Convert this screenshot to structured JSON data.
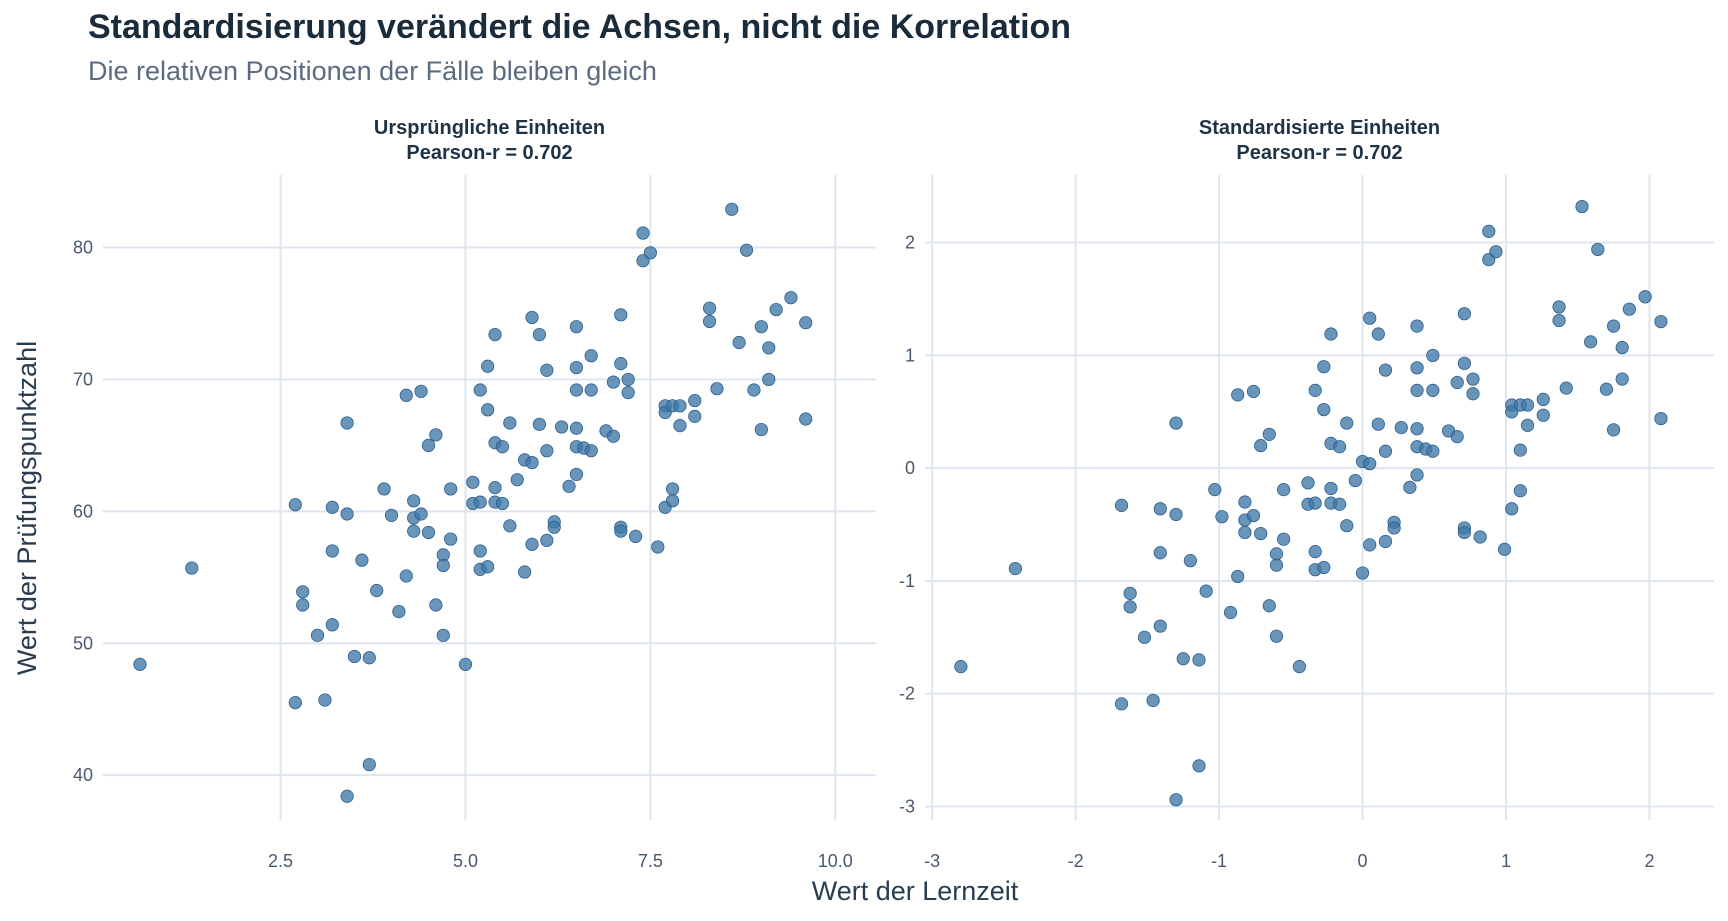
{
  "title": "Standardisierung verändert die Achsen, nicht die Korrelation",
  "subtitle": "Die relativen Positionen der Fälle bleiben gleich",
  "x_axis_title": "Wert der Lernzeit",
  "y_axis_title": "Wert der Prüfungspunktzahl",
  "chart_data": [
    {
      "type": "scatter",
      "panel_title": "Ursprüngliche Einheiten",
      "panel_stat": "Pearson-r = 0.702",
      "xlim": [
        0.1,
        10.55
      ],
      "ylim": [
        36.6,
        85.5
      ],
      "x_ticks": [
        2.5,
        5.0,
        7.5,
        10.0
      ],
      "x_tick_labels": [
        "2.5",
        "5.0",
        "7.5",
        "10.0"
      ],
      "y_ticks": [
        40,
        50,
        60,
        70,
        80
      ],
      "y_tick_labels": [
        "40",
        "50",
        "60",
        "70",
        "80"
      ],
      "grid": true,
      "points": [
        [
          0.6,
          48.4
        ],
        [
          1.3,
          55.7
        ],
        [
          2.7,
          60.5
        ],
        [
          2.7,
          45.5
        ],
        [
          2.8,
          53.9
        ],
        [
          2.8,
          52.9
        ],
        [
          3.0,
          50.6
        ],
        [
          3.1,
          45.7
        ],
        [
          3.2,
          60.3
        ],
        [
          3.2,
          57.0
        ],
        [
          3.2,
          51.4
        ],
        [
          3.4,
          66.7
        ],
        [
          3.4,
          59.8
        ],
        [
          3.4,
          38.4
        ],
        [
          3.5,
          49.0
        ],
        [
          3.6,
          56.3
        ],
        [
          3.7,
          48.9
        ],
        [
          3.7,
          40.8
        ],
        [
          3.8,
          54.0
        ],
        [
          3.9,
          61.7
        ],
        [
          4.0,
          59.7
        ],
        [
          4.1,
          52.4
        ],
        [
          4.2,
          68.8
        ],
        [
          4.2,
          55.1
        ],
        [
          4.3,
          60.8
        ],
        [
          4.3,
          59.5
        ],
        [
          4.3,
          58.5
        ],
        [
          4.4,
          69.1
        ],
        [
          4.4,
          59.8
        ],
        [
          4.5,
          65.0
        ],
        [
          4.5,
          58.4
        ],
        [
          4.6,
          65.8
        ],
        [
          4.6,
          52.9
        ],
        [
          4.7,
          56.7
        ],
        [
          4.7,
          55.9
        ],
        [
          4.7,
          50.6
        ],
        [
          4.8,
          61.7
        ],
        [
          4.8,
          57.9
        ],
        [
          5.0,
          48.4
        ],
        [
          5.1,
          62.2
        ],
        [
          5.1,
          60.6
        ],
        [
          5.2,
          69.2
        ],
        [
          5.2,
          60.7
        ],
        [
          5.2,
          57.0
        ],
        [
          5.2,
          55.6
        ],
        [
          5.3,
          71.0
        ],
        [
          5.3,
          67.7
        ],
        [
          5.3,
          55.8
        ],
        [
          5.4,
          73.4
        ],
        [
          5.4,
          65.2
        ],
        [
          5.4,
          61.8
        ],
        [
          5.4,
          60.7
        ],
        [
          5.5,
          64.9
        ],
        [
          5.5,
          60.6
        ],
        [
          5.6,
          66.7
        ],
        [
          5.6,
          58.9
        ],
        [
          5.7,
          62.4
        ],
        [
          5.8,
          63.9
        ],
        [
          5.8,
          55.4
        ],
        [
          5.9,
          74.7
        ],
        [
          5.9,
          63.7
        ],
        [
          5.9,
          57.5
        ],
        [
          6.0,
          73.4
        ],
        [
          6.0,
          66.6
        ],
        [
          6.1,
          70.7
        ],
        [
          6.1,
          64.6
        ],
        [
          6.1,
          57.8
        ],
        [
          6.2,
          59.2
        ],
        [
          6.2,
          58.8
        ],
        [
          6.3,
          66.4
        ],
        [
          6.4,
          61.9
        ],
        [
          6.5,
          74.0
        ],
        [
          6.5,
          70.9
        ],
        [
          6.5,
          69.2
        ],
        [
          6.5,
          66.3
        ],
        [
          6.5,
          64.9
        ],
        [
          6.5,
          62.8
        ],
        [
          6.6,
          64.8
        ],
        [
          6.7,
          71.8
        ],
        [
          6.7,
          69.2
        ],
        [
          6.7,
          64.6
        ],
        [
          6.9,
          66.1
        ],
        [
          7.0,
          69.8
        ],
        [
          7.0,
          65.7
        ],
        [
          7.1,
          74.9
        ],
        [
          7.1,
          71.2
        ],
        [
          7.1,
          58.8
        ],
        [
          7.1,
          58.5
        ],
        [
          7.2,
          70.0
        ],
        [
          7.2,
          69.0
        ],
        [
          7.3,
          58.1
        ],
        [
          7.4,
          81.1
        ],
        [
          7.4,
          79.0
        ],
        [
          7.5,
          79.6
        ],
        [
          7.6,
          57.3
        ],
        [
          7.7,
          68.0
        ],
        [
          7.7,
          67.5
        ],
        [
          7.7,
          60.3
        ],
        [
          7.8,
          68.0
        ],
        [
          7.8,
          61.7
        ],
        [
          7.8,
          60.8
        ],
        [
          7.9,
          68.0
        ],
        [
          7.9,
          66.5
        ],
        [
          8.1,
          68.4
        ],
        [
          8.1,
          67.2
        ],
        [
          8.3,
          75.4
        ],
        [
          8.3,
          74.4
        ],
        [
          8.4,
          69.3
        ],
        [
          8.6,
          82.9
        ],
        [
          8.7,
          72.8
        ],
        [
          8.8,
          79.8
        ],
        [
          8.9,
          69.2
        ],
        [
          9.0,
          74.0
        ],
        [
          9.0,
          66.2
        ],
        [
          9.1,
          72.4
        ],
        [
          9.1,
          70.0
        ],
        [
          9.2,
          75.3
        ],
        [
          9.4,
          76.2
        ],
        [
          9.6,
          74.3
        ],
        [
          9.6,
          67.0
        ]
      ]
    },
    {
      "type": "scatter",
      "panel_title": "Standardisierte Einheiten",
      "panel_stat": "Pearson-r = 0.702",
      "xlim": [
        -3.05,
        2.45
      ],
      "ylim": [
        -3.12,
        2.6
      ],
      "x_ticks": [
        -3,
        -2,
        -1,
        0,
        1,
        2
      ],
      "x_tick_labels": [
        "-3",
        "-2",
        "-1",
        "0",
        "1",
        "2"
      ],
      "y_ticks": [
        -3,
        -2,
        -1,
        0,
        1,
        2
      ],
      "y_tick_labels": [
        "-3",
        "-2",
        "-1",
        "0",
        "1",
        "2"
      ],
      "grid": true,
      "points": [
        [
          -2.8,
          -1.76
        ],
        [
          -2.42,
          -0.89
        ],
        [
          -1.68,
          -0.33
        ],
        [
          -1.68,
          -2.09
        ],
        [
          -1.62,
          -1.11
        ],
        [
          -1.62,
          -1.23
        ],
        [
          -1.52,
          -1.5
        ],
        [
          -1.46,
          -2.06
        ],
        [
          -1.41,
          -0.36
        ],
        [
          -1.41,
          -0.75
        ],
        [
          -1.41,
          -1.4
        ],
        [
          -1.3,
          0.4
        ],
        [
          -1.3,
          -0.41
        ],
        [
          -1.3,
          -2.94
        ],
        [
          -1.25,
          -1.69
        ],
        [
          -1.2,
          -0.82
        ],
        [
          -1.14,
          -1.7
        ],
        [
          -1.14,
          -2.64
        ],
        [
          -1.09,
          -1.09
        ],
        [
          -1.03,
          -0.19
        ],
        [
          -0.98,
          -0.43
        ],
        [
          -0.92,
          -1.28
        ],
        [
          -0.87,
          0.65
        ],
        [
          -0.87,
          -0.96
        ],
        [
          -0.82,
          -0.3
        ],
        [
          -0.82,
          -0.46
        ],
        [
          -0.82,
          -0.57
        ],
        [
          -0.76,
          0.68
        ],
        [
          -0.76,
          -0.42
        ],
        [
          -0.71,
          0.2
        ],
        [
          -0.71,
          -0.58
        ],
        [
          -0.65,
          0.3
        ],
        [
          -0.65,
          -1.22
        ],
        [
          -0.6,
          -0.76
        ],
        [
          -0.6,
          -0.86
        ],
        [
          -0.6,
          -1.49
        ],
        [
          -0.55,
          -0.19
        ],
        [
          -0.55,
          -0.63
        ],
        [
          -0.44,
          -1.76
        ],
        [
          -0.38,
          -0.13
        ],
        [
          -0.38,
          -0.32
        ],
        [
          -0.33,
          0.69
        ],
        [
          -0.33,
          -0.31
        ],
        [
          -0.33,
          -0.74
        ],
        [
          -0.33,
          -0.9
        ],
        [
          -0.27,
          0.9
        ],
        [
          -0.27,
          0.52
        ],
        [
          -0.27,
          -0.88
        ],
        [
          -0.22,
          1.19
        ],
        [
          -0.22,
          0.22
        ],
        [
          -0.22,
          -0.18
        ],
        [
          -0.22,
          -0.31
        ],
        [
          -0.16,
          0.19
        ],
        [
          -0.16,
          -0.32
        ],
        [
          -0.11,
          0.4
        ],
        [
          -0.11,
          -0.51
        ],
        [
          -0.05,
          -0.11
        ],
        [
          0.0,
          0.06
        ],
        [
          0.0,
          -0.93
        ],
        [
          0.05,
          1.33
        ],
        [
          0.05,
          0.04
        ],
        [
          0.05,
          -0.68
        ],
        [
          0.11,
          1.19
        ],
        [
          0.11,
          0.39
        ],
        [
          0.16,
          0.87
        ],
        [
          0.16,
          0.15
        ],
        [
          0.16,
          -0.65
        ],
        [
          0.22,
          -0.48
        ],
        [
          0.22,
          -0.53
        ],
        [
          0.27,
          0.36
        ],
        [
          0.33,
          -0.17
        ],
        [
          0.38,
          1.26
        ],
        [
          0.38,
          0.89
        ],
        [
          0.38,
          0.69
        ],
        [
          0.38,
          0.35
        ],
        [
          0.38,
          0.19
        ],
        [
          0.38,
          -0.06
        ],
        [
          0.44,
          0.17
        ],
        [
          0.49,
          1.0
        ],
        [
          0.49,
          0.69
        ],
        [
          0.49,
          0.15
        ],
        [
          0.6,
          0.33
        ],
        [
          0.66,
          0.76
        ],
        [
          0.66,
          0.28
        ],
        [
          0.71,
          1.37
        ],
        [
          0.71,
          0.93
        ],
        [
          0.71,
          -0.53
        ],
        [
          0.71,
          -0.57
        ],
        [
          0.77,
          0.79
        ],
        [
          0.77,
          0.66
        ],
        [
          0.82,
          -0.61
        ],
        [
          0.88,
          2.1
        ],
        [
          0.88,
          1.85
        ],
        [
          0.93,
          1.92
        ],
        [
          0.99,
          -0.72
        ],
        [
          1.04,
          0.56
        ],
        [
          1.04,
          0.5
        ],
        [
          1.04,
          -0.36
        ],
        [
          1.1,
          0.56
        ],
        [
          1.1,
          0.16
        ],
        [
          1.1,
          -0.2
        ],
        [
          1.15,
          0.56
        ],
        [
          1.15,
          0.38
        ],
        [
          1.26,
          0.61
        ],
        [
          1.26,
          0.47
        ],
        [
          1.37,
          1.43
        ],
        [
          1.37,
          1.31
        ],
        [
          1.42,
          0.71
        ],
        [
          1.53,
          2.32
        ],
        [
          1.59,
          1.12
        ],
        [
          1.64,
          1.94
        ],
        [
          1.7,
          0.7
        ],
        [
          1.75,
          1.26
        ],
        [
          1.75,
          0.34
        ],
        [
          1.81,
          1.07
        ],
        [
          1.81,
          0.79
        ],
        [
          1.86,
          1.41
        ],
        [
          1.97,
          1.52
        ],
        [
          2.08,
          1.3
        ],
        [
          2.08,
          0.44
        ]
      ]
    }
  ]
}
